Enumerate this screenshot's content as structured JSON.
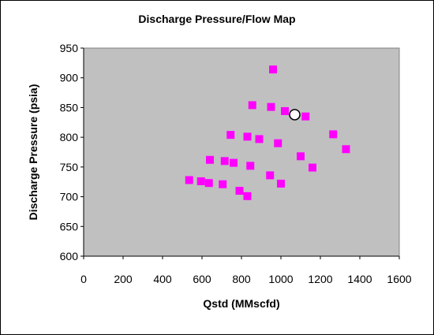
{
  "chart_data": {
    "type": "scatter",
    "title": "Discharge Pressure/Flow Map",
    "xlabel": "Qstd (MMscfd)",
    "ylabel": "Discharge Pressure (psia)",
    "xlim": [
      0,
      1600
    ],
    "ylim": [
      600,
      950
    ],
    "xticks": [
      0,
      200,
      400,
      600,
      800,
      1000,
      1200,
      1400,
      1600
    ],
    "yticks": [
      600,
      650,
      700,
      750,
      800,
      850,
      900,
      950
    ],
    "grid": false,
    "legend": "none",
    "plot_background": "#c0c0c0",
    "series": [
      {
        "marker": "square",
        "color": "#ff00ff",
        "points": [
          {
            "x": 535,
            "y": 728
          },
          {
            "x": 595,
            "y": 726
          },
          {
            "x": 635,
            "y": 723
          },
          {
            "x": 640,
            "y": 762
          },
          {
            "x": 705,
            "y": 721
          },
          {
            "x": 715,
            "y": 760
          },
          {
            "x": 745,
            "y": 804
          },
          {
            "x": 760,
            "y": 757
          },
          {
            "x": 790,
            "y": 710
          },
          {
            "x": 830,
            "y": 801
          },
          {
            "x": 830,
            "y": 701
          },
          {
            "x": 845,
            "y": 752
          },
          {
            "x": 855,
            "y": 854
          },
          {
            "x": 890,
            "y": 797
          },
          {
            "x": 945,
            "y": 736
          },
          {
            "x": 950,
            "y": 851
          },
          {
            "x": 960,
            "y": 914
          },
          {
            "x": 985,
            "y": 790
          },
          {
            "x": 1000,
            "y": 722
          },
          {
            "x": 1020,
            "y": 844
          },
          {
            "x": 1100,
            "y": 768
          },
          {
            "x": 1125,
            "y": 835
          },
          {
            "x": 1160,
            "y": 749
          },
          {
            "x": 1265,
            "y": 805
          },
          {
            "x": 1330,
            "y": 780
          }
        ]
      },
      {
        "marker": "circle",
        "color": "#ffffff",
        "points": [
          {
            "x": 1070,
            "y": 838
          }
        ]
      }
    ]
  }
}
